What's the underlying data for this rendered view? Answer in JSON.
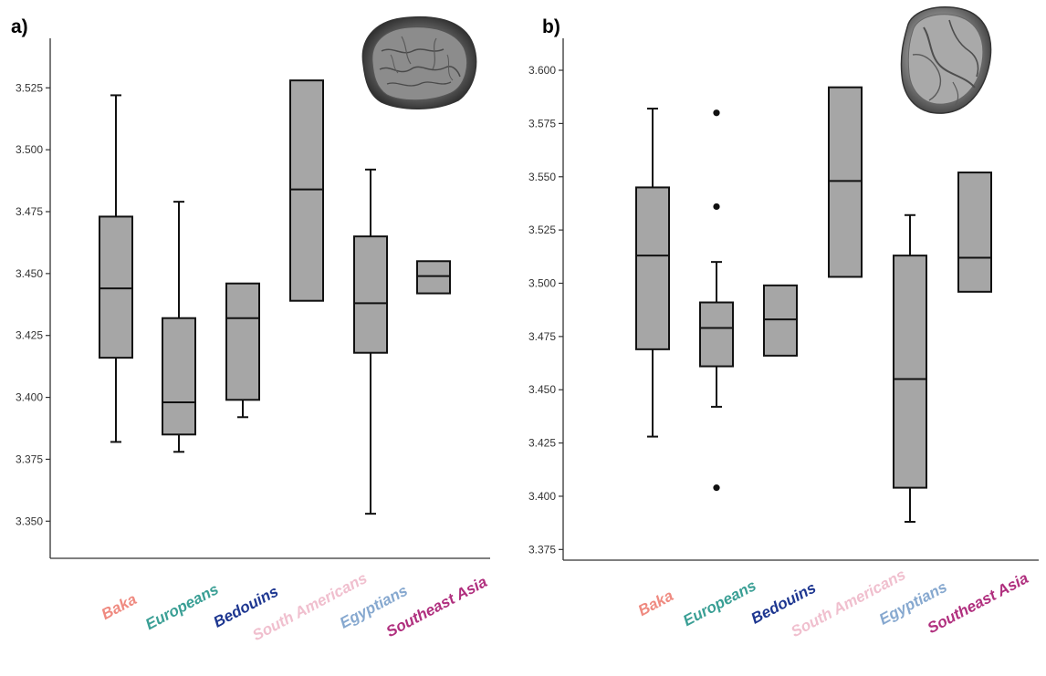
{
  "chart_data": [
    {
      "type": "box",
      "panel_label": "a)",
      "ylim": [
        3.335,
        3.545
      ],
      "yticks": [
        "3.350",
        "3.375",
        "3.400",
        "3.425",
        "3.450",
        "3.475",
        "3.500",
        "3.525"
      ],
      "ytick_values": [
        3.35,
        3.375,
        3.4,
        3.425,
        3.45,
        3.475,
        3.5,
        3.525
      ],
      "grid": false,
      "categories": [
        "Baka",
        "Europeans",
        "Bedouins",
        "South Americans",
        "Egyptians",
        "Southeast Asia"
      ],
      "category_colors": [
        "#ef8a80",
        "#3a9f95",
        "#1d3690",
        "#f0bfce",
        "#86a8cf",
        "#b02f7e"
      ],
      "box_fill": "#a6a6a6",
      "boxes": [
        {
          "min": 3.382,
          "q1": 3.416,
          "median": 3.444,
          "q3": 3.473,
          "max": 3.522,
          "outliers": []
        },
        {
          "min": 3.378,
          "q1": 3.385,
          "median": 3.398,
          "q3": 3.432,
          "max": 3.479,
          "outliers": []
        },
        {
          "min": 3.392,
          "q1": 3.399,
          "median": 3.432,
          "q3": 3.446,
          "max": 3.446,
          "outliers": []
        },
        {
          "min": 3.439,
          "q1": 3.439,
          "median": 3.484,
          "q3": 3.528,
          "max": 3.528,
          "outliers": []
        },
        {
          "min": 3.353,
          "q1": 3.418,
          "median": 3.438,
          "q3": 3.465,
          "max": 3.492,
          "outliers": []
        },
        {
          "min": 3.442,
          "q1": 3.442,
          "median": 3.449,
          "q3": 3.455,
          "max": 3.455,
          "outliers": []
        }
      ]
    },
    {
      "type": "box",
      "panel_label": "b)",
      "ylim": [
        3.37,
        3.615
      ],
      "yticks": [
        "3.375",
        "3.400",
        "3.425",
        "3.450",
        "3.475",
        "3.500",
        "3.525",
        "3.550",
        "3.575",
        "3.600"
      ],
      "ytick_values": [
        3.375,
        3.4,
        3.425,
        3.45,
        3.475,
        3.5,
        3.525,
        3.55,
        3.575,
        3.6
      ],
      "grid": false,
      "categories": [
        "Baka",
        "Europeans",
        "Bedouins",
        "South Americans",
        "Egyptians",
        "Southeast Asia"
      ],
      "category_colors": [
        "#ef8a80",
        "#3a9f95",
        "#1d3690",
        "#f0bfce",
        "#86a8cf",
        "#b02f7e"
      ],
      "box_fill": "#a6a6a6",
      "boxes": [
        {
          "min": 3.428,
          "q1": 3.469,
          "median": 3.513,
          "q3": 3.545,
          "max": 3.582,
          "outliers": []
        },
        {
          "min": 3.442,
          "q1": 3.461,
          "median": 3.479,
          "q3": 3.491,
          "max": 3.51,
          "outliers": [
            3.58,
            3.536,
            3.404
          ]
        },
        {
          "min": 3.466,
          "q1": 3.466,
          "median": 3.483,
          "q3": 3.499,
          "max": 3.499,
          "outliers": []
        },
        {
          "min": 3.503,
          "q1": 3.503,
          "median": 3.548,
          "q3": 3.592,
          "max": 3.592,
          "outliers": []
        },
        {
          "min": 3.388,
          "q1": 3.404,
          "median": 3.455,
          "q3": 3.513,
          "max": 3.532,
          "outliers": []
        },
        {
          "min": 3.496,
          "q1": 3.496,
          "median": 3.512,
          "q3": 3.552,
          "max": 3.552,
          "outliers": []
        }
      ]
    }
  ]
}
